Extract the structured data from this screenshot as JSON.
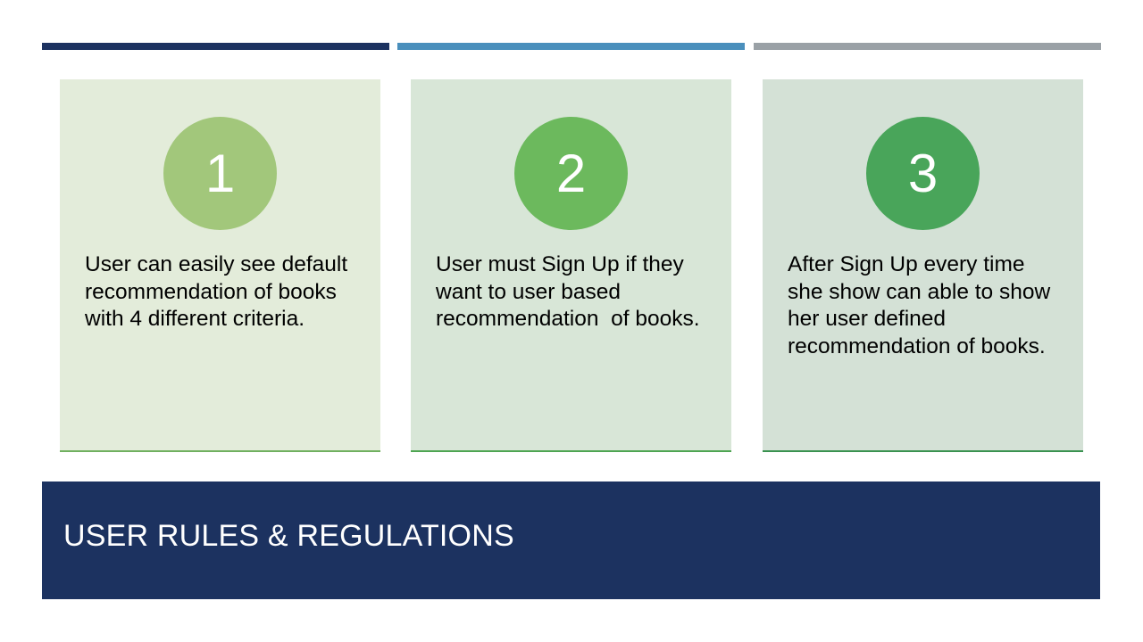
{
  "colors": {
    "bar_1": "#1c3260",
    "bar_2": "#4a8fbc",
    "bar_3": "#9aa1a6",
    "title_background": "#1c3260"
  },
  "cards": [
    {
      "number": "1",
      "text": "User can easily see default  recommendation of books with 4 different criteria.",
      "background": "#e3ecda",
      "circle_color": "#a2c77b",
      "line_color": "#70b060"
    },
    {
      "number": "2",
      "text": "User must Sign Up if they want to user based recommendation  of books.",
      "background": "#d8e6d7",
      "circle_color": "#6cb95d",
      "line_color": "#4ea552"
    },
    {
      "number": "3",
      "text": "After Sign Up every time she show can able to show her user defined recommendation of books.",
      "background": "#d4e1d6",
      "circle_color": "#49a55a",
      "line_color": "#3a9250"
    }
  ],
  "title": "USER RULES & REGULATIONS"
}
